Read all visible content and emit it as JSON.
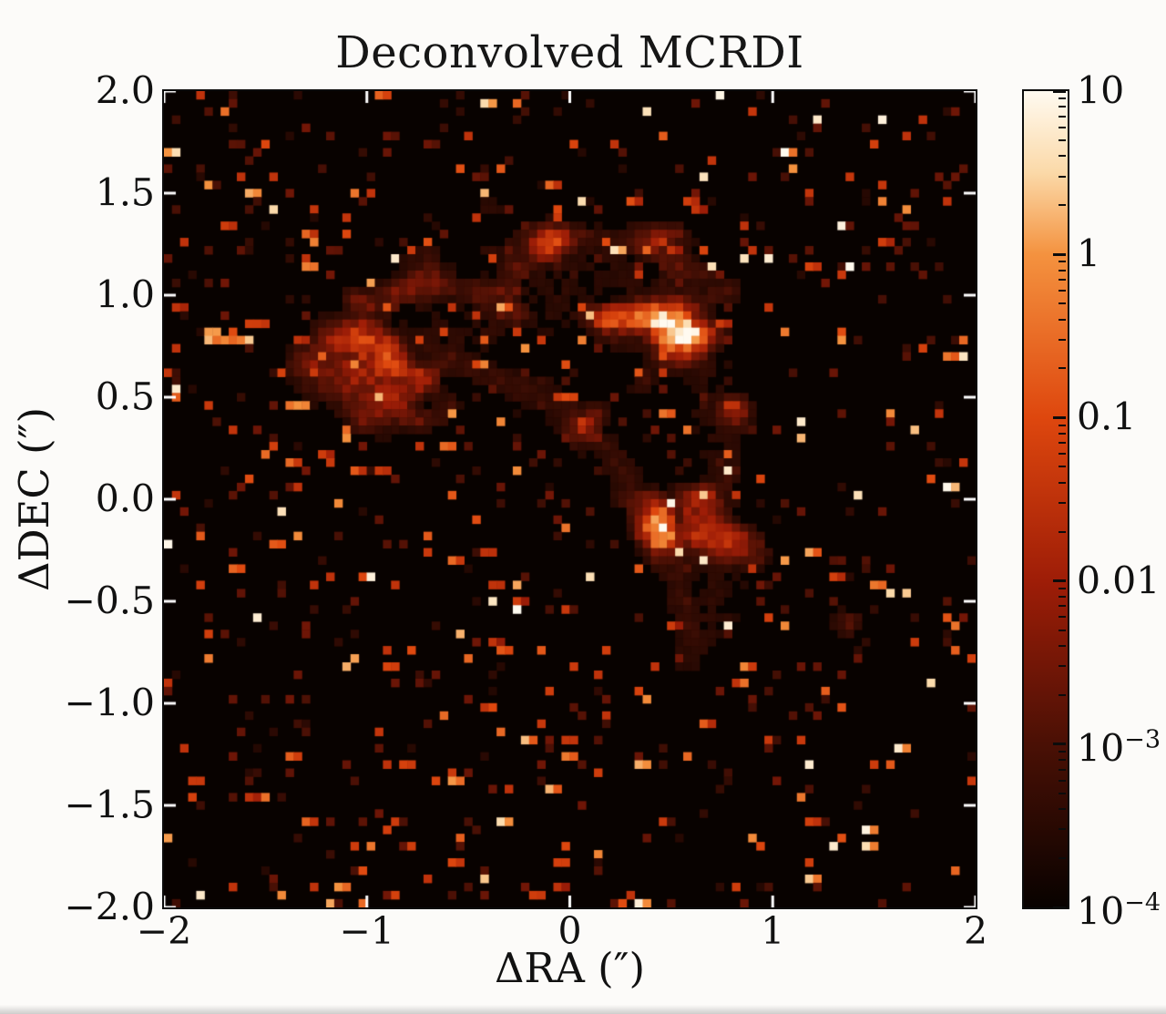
{
  "title": "Deconvolved MCRDI",
  "axes": {
    "x": {
      "label": "ΔRA (″)",
      "range": [
        -2,
        2
      ],
      "tick_labels": [
        "−2",
        "−1",
        "0",
        "1",
        "2"
      ]
    },
    "y": {
      "label": "ΔDEC (″)",
      "range": [
        -2,
        2
      ],
      "tick_labels": [
        "2.0",
        "1.5",
        "1.0",
        "0.5",
        "0.0",
        "−0.5",
        "−1.0",
        "−1.5",
        "−2.0"
      ]
    }
  },
  "colorbar": {
    "scale": "log",
    "min_label_exp": -4,
    "max_label_exp": 1,
    "labels": [
      {
        "base": "10",
        "sup": ""
      },
      {
        "base": "1",
        "sup": ""
      },
      {
        "base": "0.1",
        "sup": ""
      },
      {
        "base": "0.01",
        "sup": ""
      },
      {
        "base": "10",
        "sup": "−3"
      },
      {
        "base": "10",
        "sup": "−4"
      }
    ],
    "tick_color": "#0c0c0c"
  },
  "chart_data": {
    "type": "heatmap",
    "title": "Deconvolved MCRDI",
    "xlabel": "ΔRA (″)",
    "ylabel": "ΔDEC (″)",
    "xlim": [
      -2,
      2
    ],
    "ylim": [
      -2,
      2
    ],
    "description": "Log-scaled speckled intensity map of a deconvolved MCRDI image: a bright filamentary crescent arc from upper-left (-1.0, 0.6) over the top (0.0, 1.05) curving down the right side to (0.55, -0.8), with a dark interior hole near (0, 0) and isolated hot pixels scattered over a black background.",
    "colorscale": {
      "type": "log",
      "min": 0.0001,
      "max": 10,
      "stops": [
        {
          "t": 0.0,
          "color": "#080200"
        },
        {
          "t": 0.2,
          "color": "#4a1005"
        },
        {
          "t": 0.4,
          "color": "#9e1d07"
        },
        {
          "t": 0.6,
          "color": "#de470e"
        },
        {
          "t": 0.8,
          "color": "#f4923f"
        },
        {
          "t": 0.9,
          "color": "#fbd9a8"
        },
        {
          "t": 1.0,
          "color": "#fffaf0"
        }
      ]
    },
    "grid": 100,
    "seed": 1337,
    "structure": {
      "bands": [
        {
          "pts": [
            [
              -1.05,
              0.52
            ],
            [
              -0.82,
              0.7
            ],
            [
              -0.55,
              0.84
            ],
            [
              -0.25,
              0.97
            ],
            [
              0.02,
              1.05
            ],
            [
              0.28,
              1.01
            ],
            [
              0.5,
              0.88
            ],
            [
              0.64,
              0.65
            ],
            [
              0.73,
              0.38
            ],
            [
              0.77,
              0.12
            ],
            [
              0.77,
              -0.14
            ],
            [
              0.73,
              -0.4
            ],
            [
              0.66,
              -0.62
            ],
            [
              0.56,
              -0.8
            ]
          ],
          "sigma": [
            0.2,
            0.23,
            0.25,
            0.26,
            0.25,
            0.23,
            0.21,
            0.19,
            0.17,
            0.16,
            0.15,
            0.14,
            0.12,
            0.1
          ],
          "amp": 0.85
        },
        {
          "pts": [
            [
              -0.68,
              0.74
            ],
            [
              -0.44,
              0.63
            ],
            [
              -0.18,
              0.52
            ],
            [
              0.04,
              0.4
            ],
            [
              0.2,
              0.22
            ],
            [
              0.33,
              0.02
            ],
            [
              0.43,
              -0.16
            ],
            [
              0.51,
              -0.36
            ],
            [
              0.58,
              -0.56
            ],
            [
              0.62,
              -0.72
            ]
          ],
          "sigma": 0.07,
          "amp": 1.2
        },
        {
          "pts": [
            [
              1.05,
              -0.02
            ],
            [
              1.18,
              -0.18
            ],
            [
              1.28,
              -0.38
            ],
            [
              1.32,
              -0.55
            ]
          ],
          "sigma": 0.09,
          "amp": 0.6
        },
        {
          "pts": [
            [
              -0.85,
              0.88
            ],
            [
              -1.18,
              1.04
            ]
          ],
          "sigma": 0.05,
          "amp": 0.65
        },
        {
          "pts": [
            [
              -0.12,
              1.12
            ],
            [
              0.0,
              1.36
            ]
          ],
          "sigma": 0.05,
          "amp": 0.6
        },
        {
          "pts": [
            [
              0.25,
              1.06
            ],
            [
              0.46,
              1.28
            ]
          ],
          "sigma": 0.05,
          "amp": 0.6
        }
      ],
      "speckles": 320,
      "faint_speckles": 500,
      "streaks": [
        [
          -2.0,
          1.72,
          2,
          0.9
        ],
        [
          -1.8,
          0.79,
          6,
          0.8
        ],
        [
          -1.42,
          0.5,
          3,
          0.7
        ],
        [
          1.42,
          -1.6,
          2,
          0.85
        ],
        [
          -0.3,
          -0.5,
          1,
          0.97
        ],
        [
          -0.55,
          -0.62,
          1,
          0.95
        ]
      ]
    },
    "plot_ticks": {
      "x_major": [
        -2,
        -1,
        0,
        1,
        2
      ],
      "y_major": [
        2,
        1.5,
        1,
        0.5,
        0,
        -0.5,
        -1,
        -1.5,
        -2
      ],
      "color": "#ffffff",
      "length": 13,
      "width": 3
    }
  }
}
